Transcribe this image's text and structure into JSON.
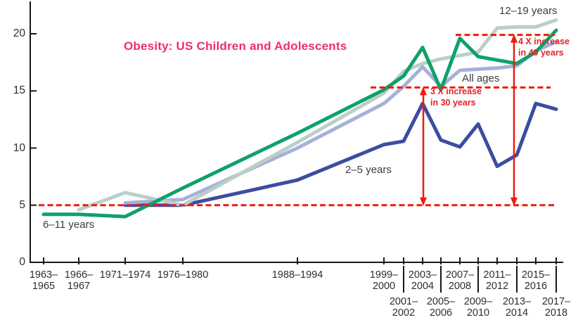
{
  "title": "Obesity: US Children and Adolescents",
  "chart_data": {
    "type": "line",
    "title": "Obesity: US Children and Adolescents",
    "xlabel": "",
    "ylabel": "",
    "grid": false,
    "legend_position": "inline-labels",
    "y_axis": {
      "range": [
        0,
        22.5
      ],
      "ticks": [
        0,
        5,
        10,
        15,
        20
      ]
    },
    "categories": [
      "1963–1965",
      "1966–1967",
      "1971–1974",
      "1976–1980",
      "1988–1994",
      "1999–2000",
      "2001–2002",
      "2003–2004",
      "2005–2006",
      "2007–2008",
      "2009–2010",
      "2011–2012",
      "2013–2014",
      "2015–2016",
      "2017–2018"
    ],
    "series": [
      {
        "name": "2–5 years",
        "color": "#3b4da0",
        "values": [
          null,
          null,
          5.0,
          5.0,
          7.2,
          10.3,
          10.6,
          13.9,
          10.7,
          10.1,
          12.1,
          8.4,
          9.4,
          13.9,
          13.4
        ]
      },
      {
        "name": "All ages",
        "color": "#a6b0db",
        "values": [
          null,
          null,
          5.2,
          5.5,
          10.0,
          13.9,
          15.4,
          17.1,
          15.4,
          16.8,
          16.9,
          17.0,
          17.2,
          18.5,
          19.3
        ]
      },
      {
        "name": "12–19 years",
        "color": "#b8d0c7",
        "values": [
          null,
          4.6,
          6.1,
          5.0,
          10.5,
          14.8,
          16.7,
          17.4,
          17.8,
          18.1,
          18.4,
          20.5,
          20.6,
          20.6,
          21.2
        ]
      },
      {
        "name": "6–11 years",
        "color": "#0fa169",
        "values": [
          4.2,
          4.2,
          4.0,
          6.5,
          11.3,
          15.1,
          16.3,
          18.8,
          15.1,
          19.6,
          18.0,
          17.7,
          17.4,
          18.4,
          20.3
        ]
      }
    ],
    "reference_lines": [
      {
        "value": 5,
        "color": "#ec1c0f",
        "style": "dashed"
      },
      {
        "value": 15.3,
        "color": "#ec1c0f",
        "style": "dashed"
      },
      {
        "value": 19.9,
        "color": "#ec1c0f",
        "style": "dashed"
      }
    ],
    "arrows": [
      {
        "from_value": 15.3,
        "to_value": 5,
        "near_category": "2003–2004",
        "color": "#ec1c0f"
      },
      {
        "from_value": 19.9,
        "to_value": 5,
        "near_category": "2013–2014",
        "color": "#ec1c0f"
      }
    ],
    "annotations": [
      {
        "line1": "3 X increase",
        "line2": "in 30 years",
        "color": "#e4212b"
      },
      {
        "line1": "4 X increase",
        "line2": "in 40 years",
        "color": "#e4212b"
      }
    ]
  },
  "colors": {
    "accent_red": "#ec1c0f",
    "title_pink": "#ee2f68",
    "axis_black": "#171717",
    "label_gray": "#3c3c3c",
    "background": "#ffffff"
  }
}
